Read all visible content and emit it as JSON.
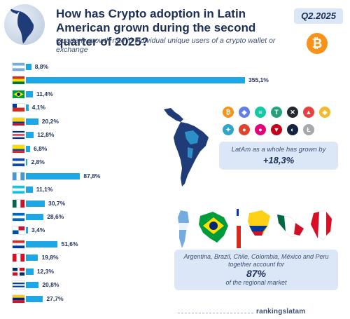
{
  "header": {
    "title": "How has Crypto adoption in Latin American grown during the second quarter of 2025?",
    "subtitle": "Quarterly growth rate in individual unique users of a crypto wallet or exchange",
    "period_badge": "Q2.2025"
  },
  "chart_data": {
    "type": "bar",
    "orientation": "horizontal",
    "categories": [
      "Argentina",
      "Bolivia",
      "Brazil",
      "Chile",
      "Colombia",
      "Costa Rica",
      "Ecuador",
      "El Salvador",
      "Guatemala",
      "Honduras",
      "Mexico",
      "Nicaragua",
      "Panama",
      "Paraguay",
      "Peru",
      "Dominican Republic",
      "Uruguay",
      "Venezuela"
    ],
    "values": [
      8.8,
      355.1,
      11.4,
      4.1,
      20.2,
      12.8,
      6.8,
      2.8,
      87.8,
      11.1,
      30.7,
      28.6,
      3.4,
      51.6,
      19.8,
      12.3,
      20.8,
      27.7
    ],
    "value_labels": [
      "8,8%",
      "355,1%",
      "11,4%",
      "4,1%",
      "20,2%",
      "12,8%",
      "6,8%",
      "2,8%",
      "87,8%",
      "11,1%",
      "30,7%",
      "28,6%",
      "3,4%",
      "51,6%",
      "19,8%",
      "12,3%",
      "20,8%",
      "27,7%"
    ],
    "xlim": [
      0,
      355.1
    ],
    "bar_color": "#1ea7e6",
    "grid": false,
    "legend": "none"
  },
  "callouts": {
    "latam_text": "LatAm as a whole has grown by",
    "latam_value": "+18,3%",
    "share_text_before": "Argentina, Brazil, Chile, Colombia, México and Peru together account for",
    "share_value": "87%",
    "share_text_after": "of the regional market"
  },
  "coins": [
    {
      "name": "bitcoin-icon",
      "glyph": "₿",
      "color": "#f7931a"
    },
    {
      "name": "ethereum-icon",
      "glyph": "◆",
      "color": "#627eea"
    },
    {
      "name": "solana-icon",
      "glyph": "≡",
      "color": "#14c8a4"
    },
    {
      "name": "tether-icon",
      "glyph": "T",
      "color": "#26a17b"
    },
    {
      "name": "xrp-icon",
      "glyph": "✕",
      "color": "#23292f"
    },
    {
      "name": "avalanche-icon",
      "glyph": "▲",
      "color": "#e84142"
    },
    {
      "name": "bnb-icon",
      "glyph": "◈",
      "color": "#f3ba2f"
    },
    {
      "name": "cardano-icon",
      "glyph": "✦",
      "color": "#2ea6c8"
    },
    {
      "name": "shiba-icon",
      "glyph": "●",
      "color": "#e0452b"
    },
    {
      "name": "polkadot-icon",
      "glyph": "●",
      "color": "#e6007a"
    },
    {
      "name": "tron-icon",
      "glyph": "▼",
      "color": "#c4001a"
    },
    {
      "name": "stellar-icon",
      "glyph": "◐",
      "color": "#14243e"
    },
    {
      "name": "litecoin-icon",
      "glyph": "Ł",
      "color": "#a6a9aa"
    }
  ],
  "flags": [
    {
      "name": "argentina-flag",
      "type": "h",
      "colors": [
        "#74acdf",
        "#ffffff",
        "#74acdf"
      ]
    },
    {
      "name": "bolivia-flag",
      "type": "h",
      "colors": [
        "#d52b1e",
        "#f9e300",
        "#007934"
      ]
    },
    {
      "name": "brazil-flag",
      "type": "brazil",
      "colors": [
        "#009c3b",
        "#ffdf00",
        "#002776"
      ]
    },
    {
      "name": "chile-flag",
      "type": "chile",
      "colors": [
        "#ffffff",
        "#d52b1e",
        "#0039a6"
      ]
    },
    {
      "name": "colombia-flag",
      "type": "hw",
      "colors": [
        "#fcd116",
        "#003893",
        "#ce1126"
      ]
    },
    {
      "name": "costa-rica-flag",
      "type": "h5",
      "colors": [
        "#002b7f",
        "#ffffff",
        "#ce1126",
        "#ffffff",
        "#002b7f"
      ]
    },
    {
      "name": "ecuador-flag",
      "type": "hw",
      "colors": [
        "#ffdd00",
        "#034ea2",
        "#ed1c24"
      ]
    },
    {
      "name": "el-salvador-flag",
      "type": "h",
      "colors": [
        "#0f47af",
        "#ffffff",
        "#0f47af"
      ]
    },
    {
      "name": "guatemala-flag",
      "type": "v",
      "colors": [
        "#4997d0",
        "#ffffff",
        "#4997d0"
      ]
    },
    {
      "name": "honduras-flag",
      "type": "h",
      "colors": [
        "#18c3df",
        "#ffffff",
        "#18c3df"
      ]
    },
    {
      "name": "mexico-flag",
      "type": "v",
      "colors": [
        "#006847",
        "#ffffff",
        "#ce1126"
      ]
    },
    {
      "name": "nicaragua-flag",
      "type": "h",
      "colors": [
        "#0067c6",
        "#ffffff",
        "#0067c6"
      ]
    },
    {
      "name": "panama-flag",
      "type": "panama",
      "colors": [
        "#ffffff",
        "#d21034",
        "#005293"
      ]
    },
    {
      "name": "paraguay-flag",
      "type": "h",
      "colors": [
        "#d52b1e",
        "#ffffff",
        "#0038a8"
      ]
    },
    {
      "name": "peru-flag",
      "type": "v",
      "colors": [
        "#d91023",
        "#ffffff",
        "#d91023"
      ]
    },
    {
      "name": "dominican-republic-flag",
      "type": "cross",
      "colors": [
        "#002d62",
        "#ce1126",
        "#ffffff"
      ]
    },
    {
      "name": "uruguay-flag",
      "type": "h5",
      "colors": [
        "#ffffff",
        "#0038a8",
        "#ffffff",
        "#0038a8",
        "#ffffff"
      ]
    },
    {
      "name": "venezuela-flag",
      "type": "h",
      "colors": [
        "#ffcc00",
        "#00247d",
        "#cf142b"
      ]
    }
  ],
  "footer": {
    "brand": "rankingslatam"
  }
}
